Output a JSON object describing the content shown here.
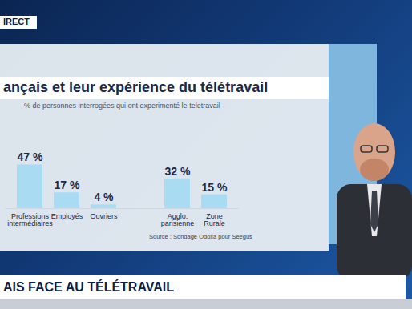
{
  "chart_data": {
    "type": "bar",
    "title": "ançais et leur expérience du télétravail",
    "subtitle": "% de personnes interrogées qui ont experimenté le teletravail",
    "source": "Source : Sondage Odoxa pour Seegus",
    "categories": [
      "Professions\nintermédiaires",
      "Employés",
      "Ouvriers",
      null,
      "Agglo.\nparisienne",
      "Zone\nRurale"
    ],
    "values": [
      47,
      17,
      4,
      null,
      32,
      15
    ],
    "value_labels": [
      "47 %",
      "17 %",
      "4 %",
      null,
      "32 %",
      "15 %"
    ],
    "color": "#a9dcf2",
    "ylim": [
      0,
      50
    ],
    "data_labels": true,
    "tick_labels": "x"
  },
  "screen": {
    "live_badge": "IRECT",
    "banner": "AIS FACE AU TÉLÉTRAVAIL"
  }
}
